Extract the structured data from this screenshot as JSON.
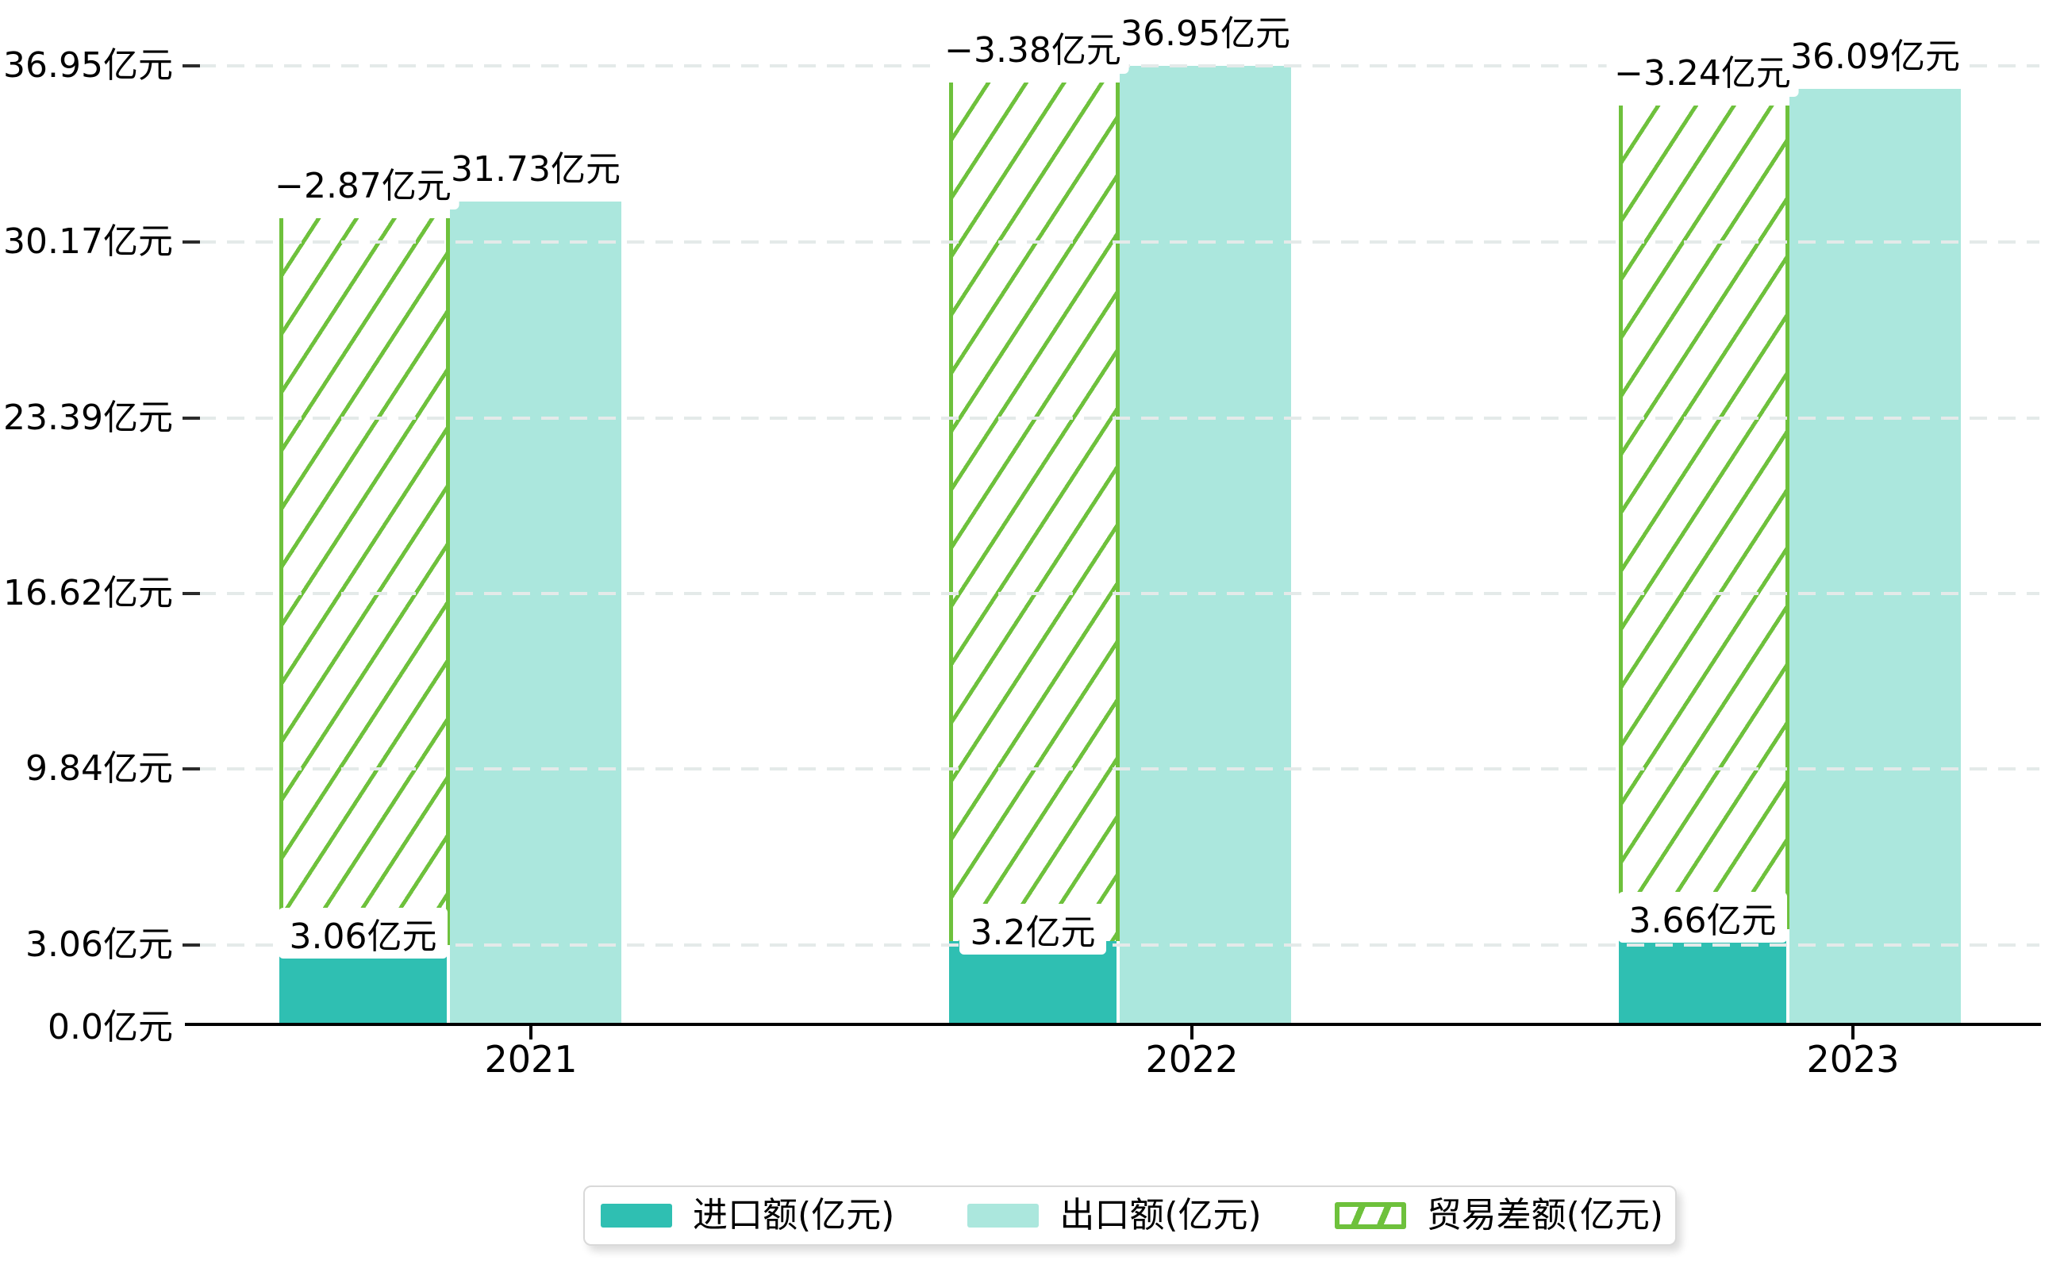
{
  "chart_data": {
    "type": "bar",
    "title": "",
    "categories": [
      "2021",
      "2022",
      "2023"
    ],
    "series": [
      {
        "name": "进口额(亿元)",
        "values": [
          3.06,
          3.2,
          3.66
        ],
        "data_labels": [
          "3.06亿元",
          "3.2亿元",
          "3.66亿元"
        ],
        "color": "#2fbfb2",
        "style": "solid"
      },
      {
        "name": "出口额(亿元)",
        "values": [
          31.73,
          36.95,
          36.09
        ],
        "data_labels": [
          "31.73亿元",
          "36.95亿元",
          "36.09亿元"
        ],
        "color": "#abe7dd",
        "style": "solid"
      },
      {
        "name": "贸易差额(亿元)",
        "values": [
          -2.87,
          -3.38,
          -3.24
        ],
        "data_labels": [
          "−2.87亿元",
          "−3.38亿元",
          "−3.24亿元"
        ],
        "color": "#6ec13c",
        "style": "hatched-outline",
        "drawn_as": "hatched segment stacked on top of the import bar reaching the export level"
      }
    ],
    "y_axis": {
      "unit": "亿元",
      "tick_labels": [
        "0.0亿元",
        "3.06亿元",
        "9.84亿元",
        "16.62亿元",
        "23.39亿元",
        "30.17亿元",
        "36.95亿元"
      ],
      "tick_values": [
        0,
        3.06,
        9.84,
        16.62,
        23.39,
        30.17,
        36.95
      ],
      "range": [
        0,
        36.95
      ]
    },
    "x_axis": {
      "tick_labels": [
        "2021",
        "2022",
        "2023"
      ]
    },
    "grid": true,
    "legend": {
      "position": "bottom",
      "items": [
        "进口额(亿元)",
        "出口额(亿元)",
        "贸易差额(亿元)"
      ]
    },
    "colors": {
      "import_bar": "#2fbfb2",
      "export_bar": "#abe7dd",
      "balance_hatch": "#6ec13c",
      "grid_line": "#e4eae9",
      "axis_line": "#000000",
      "text": "#000000",
      "label_box_bg": "#ffffff",
      "legend_border": "#d9d9d9",
      "background": "#ffffff"
    }
  }
}
